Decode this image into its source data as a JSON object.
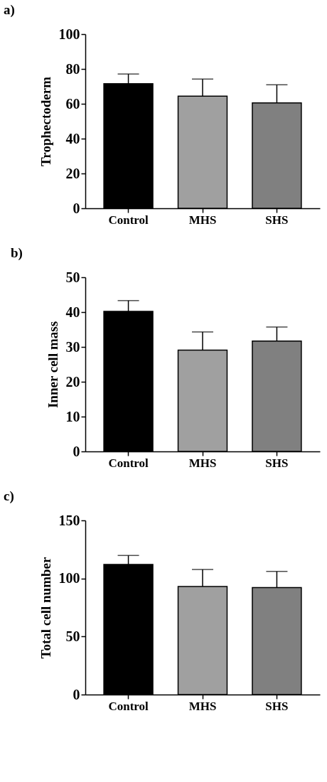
{
  "chart_data": [
    {
      "type": "bar",
      "title": "a)",
      "ylabel": "Trophectoderm",
      "categories": [
        "Control",
        "MHS",
        "SHS"
      ],
      "values": [
        71.5,
        64.4,
        60.5
      ],
      "colors": [
        "#000000",
        "#a0a0a0",
        "#808080"
      ],
      "errors": [
        [
          71.5,
          77.1
        ],
        [
          64.4,
          74.2
        ],
        [
          60.5,
          70.9
        ]
      ],
      "ylim": [
        0,
        100
      ],
      "yticks": [
        0,
        20,
        40,
        60,
        80,
        100
      ]
    },
    {
      "type": "bar",
      "title": "b)",
      "ylabel": "Inner cell mass",
      "categories": [
        "Control",
        "MHS",
        "SHS"
      ],
      "values": [
        40.2,
        29.1,
        31.7
      ],
      "colors": [
        "#000000",
        "#a0a0a0",
        "#808080"
      ],
      "errors": [
        [
          40.2,
          43.3
        ],
        [
          29.1,
          34.3
        ],
        [
          31.7,
          35.7
        ]
      ],
      "ylim": [
        0,
        50
      ],
      "yticks": [
        0,
        10,
        20,
        30,
        40,
        50
      ]
    },
    {
      "type": "bar",
      "title": "c)",
      "ylabel": "Total cell number",
      "categories": [
        "Control",
        "MHS",
        "SHS"
      ],
      "values": [
        112,
        93.1,
        92.1
      ],
      "colors": [
        "#000000",
        "#a0a0a0",
        "#808080"
      ],
      "errors": [
        [
          112,
          119.8
        ],
        [
          93.1,
          107.7
        ],
        [
          92.1,
          106
        ]
      ],
      "ylim": [
        0,
        150
      ],
      "yticks": [
        0,
        50,
        100,
        150
      ]
    }
  ]
}
